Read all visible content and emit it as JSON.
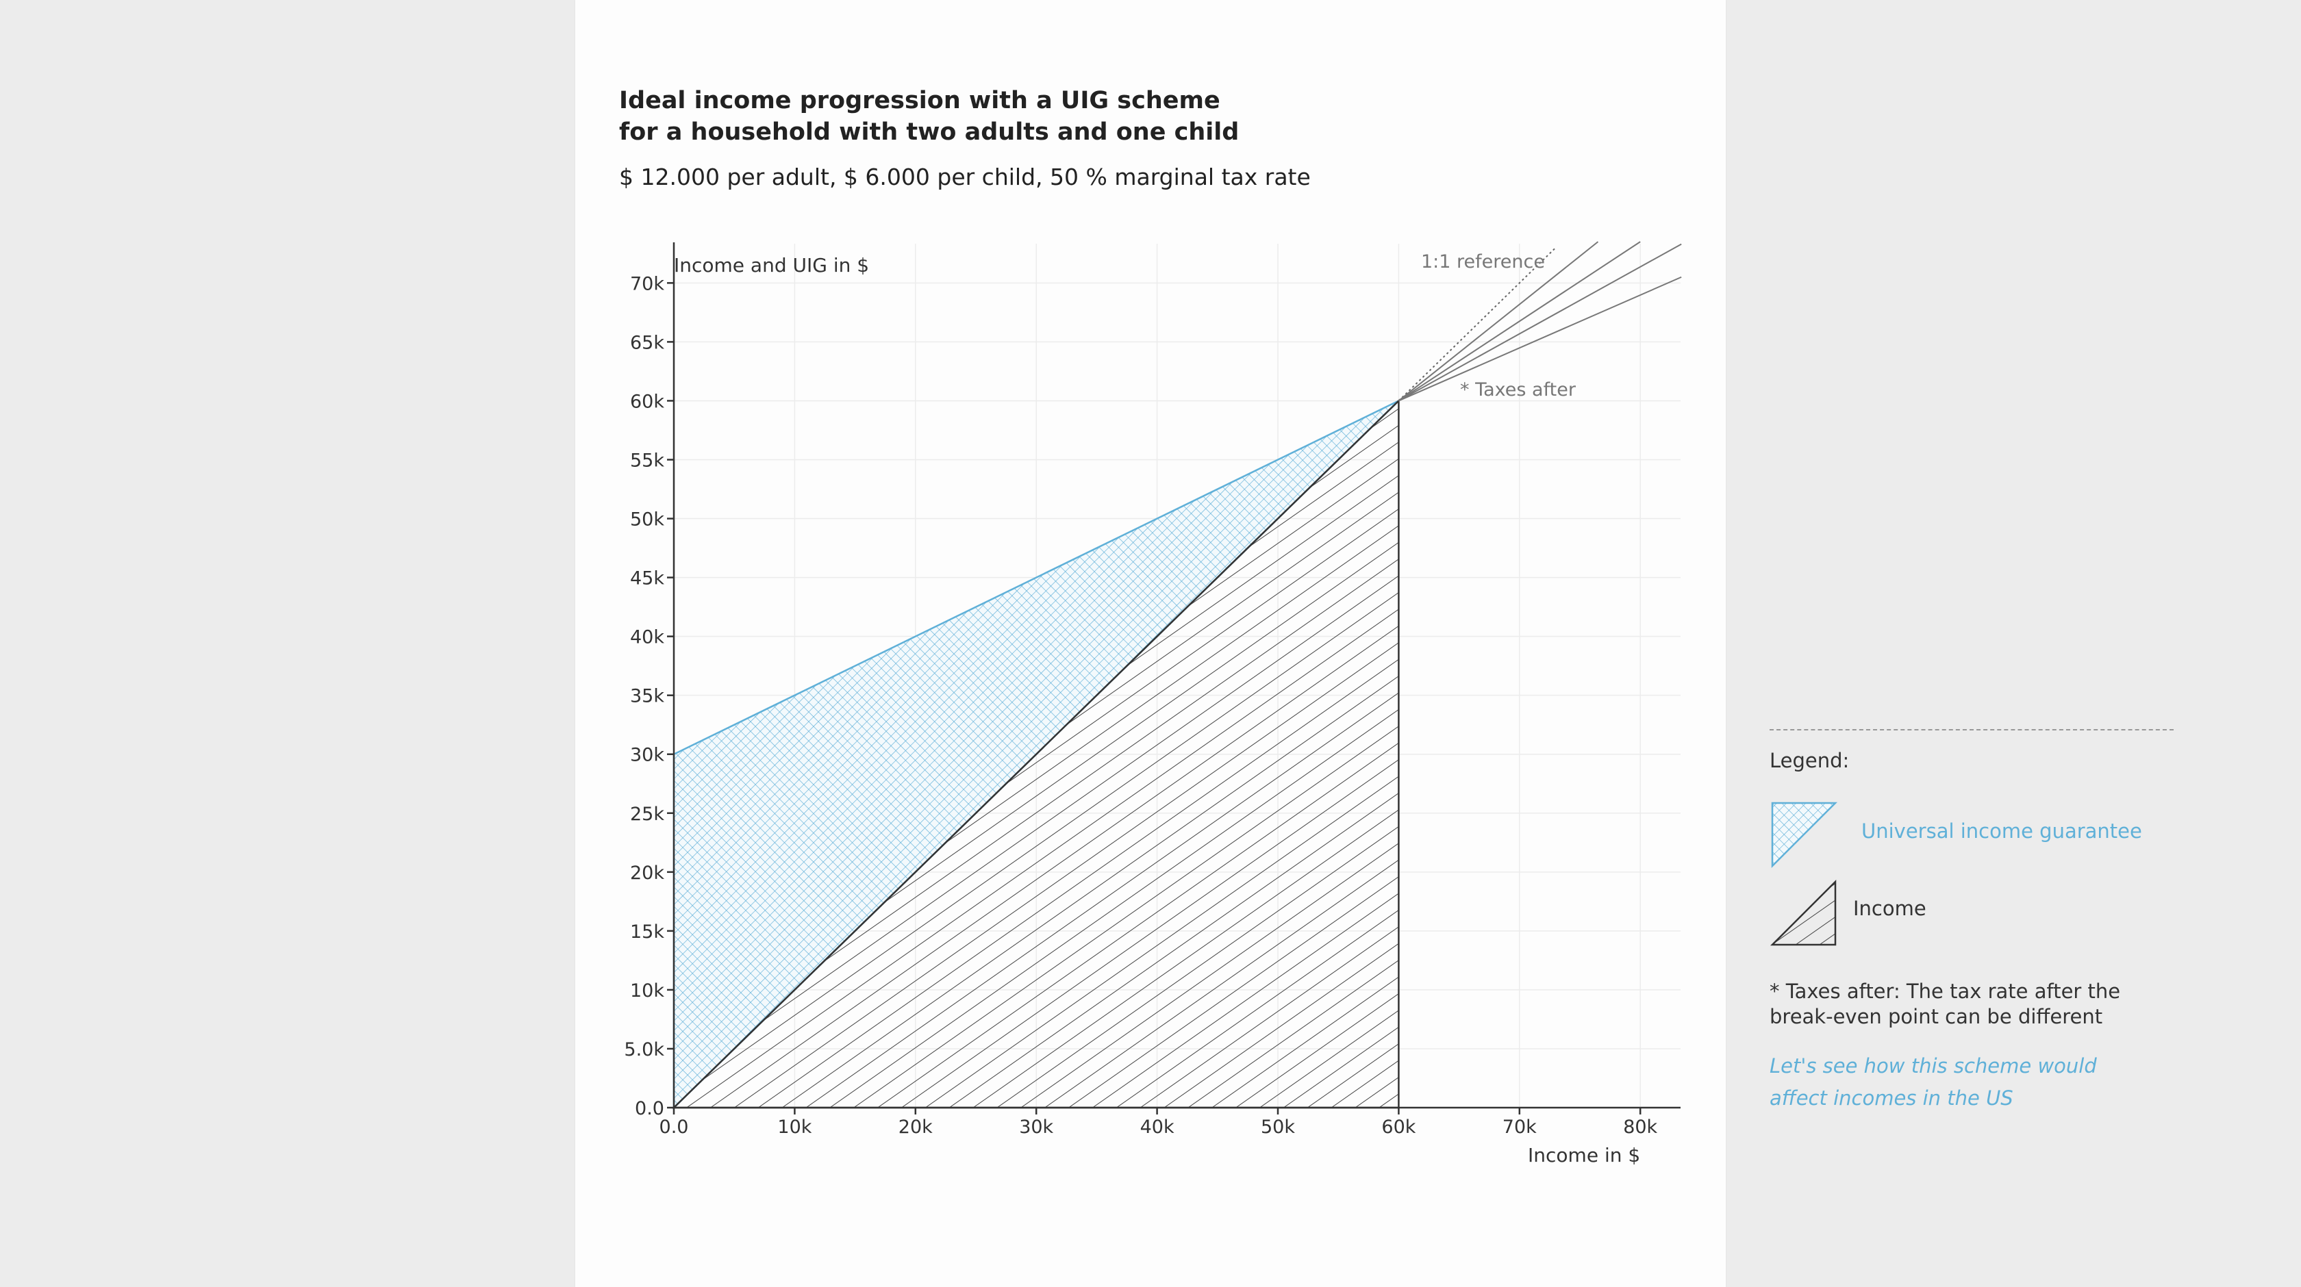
{
  "header": {
    "title_line1": "Ideal income progression with a UIG scheme",
    "title_line2": "for a household with two adults and one child",
    "subtitle": "$ 12.000 per adult, $ 6.000 per child, 50 % marginal tax rate"
  },
  "chart_data": {
    "type": "area",
    "ylabel": "Income and UIG in $",
    "xlabel": "Income in $",
    "xlim": [
      0,
      83333
    ],
    "ylim": [
      0,
      73333
    ],
    "x_ticks": [
      0,
      10000,
      20000,
      30000,
      40000,
      50000,
      60000,
      70000,
      80000
    ],
    "x_tick_labels": [
      "0.0",
      "10k",
      "20k",
      "30k",
      "40k",
      "50k",
      "60k",
      "70k",
      "80k"
    ],
    "y_ticks": [
      0,
      5000,
      10000,
      15000,
      20000,
      25000,
      30000,
      35000,
      40000,
      45000,
      50000,
      55000,
      60000,
      65000,
      70000
    ],
    "y_tick_labels": [
      "0.0",
      "5.0k",
      "10k",
      "15k",
      "20k",
      "25k",
      "30k",
      "35k",
      "40k",
      "45k",
      "50k",
      "55k",
      "60k",
      "65k",
      "70k"
    ],
    "grid": true,
    "series": [
      {
        "name": "Universal income guarantee",
        "color": "#5fb0d8",
        "pattern": "crosshatch",
        "points": [
          [
            0,
            0
          ],
          [
            0,
            30000
          ],
          [
            60000,
            60000
          ]
        ]
      },
      {
        "name": "Income",
        "color": "#333333",
        "pattern": "diagonal-hatch",
        "points": [
          [
            0,
            0
          ],
          [
            60000,
            60000
          ],
          [
            60000,
            0
          ]
        ]
      }
    ],
    "reference_line": {
      "label": "1:1 reference",
      "from": [
        60000,
        60000
      ],
      "to": [
        73000,
        73000
      ]
    },
    "taxes_after": {
      "label": "* Taxes after",
      "origin": [
        60000,
        60000
      ],
      "end_points": [
        [
          76500,
          73500
        ],
        [
          80000,
          73500
        ],
        [
          83400,
          73300
        ],
        [
          83400,
          70500
        ]
      ]
    }
  },
  "legend": {
    "title": "Legend:",
    "items": [
      {
        "label": "Universal income guarantee",
        "color": "#5fb0d8"
      },
      {
        "label": "Income",
        "color": "#333333"
      }
    ],
    "note": "* Taxes after: The tax rate after the break-even point can be different",
    "link": "Let's see how this scheme would affect incomes in the US"
  }
}
